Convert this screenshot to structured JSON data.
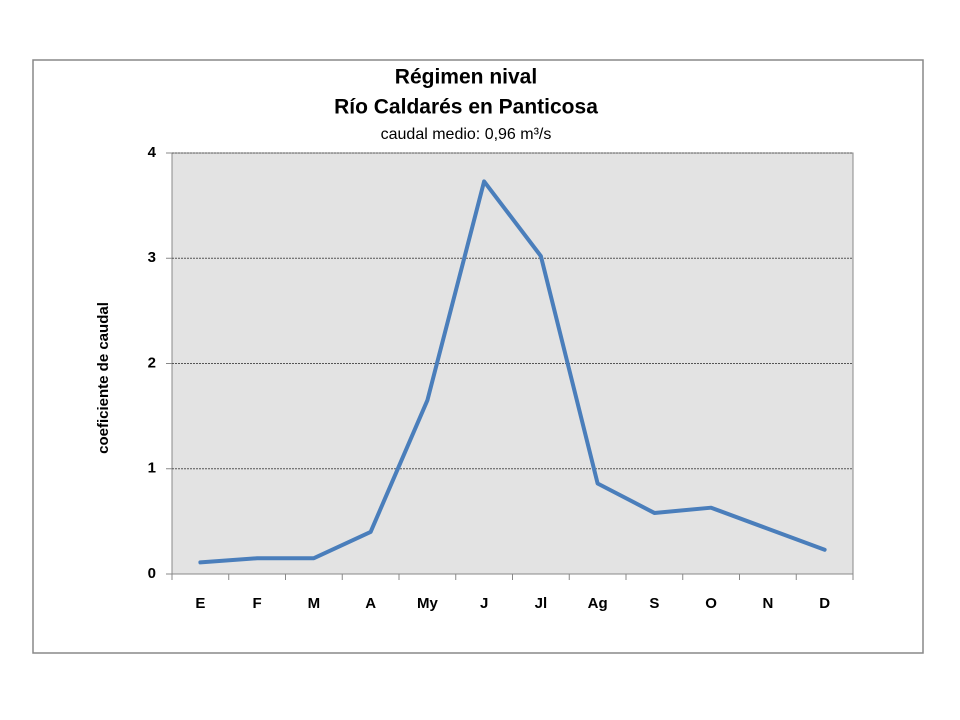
{
  "chart_data": {
    "type": "line",
    "title": "Régimen nival",
    "subtitle": "Río Caldarés en Panticosa",
    "annotation": "caudal medio: 0,96 m³/s",
    "y_label": "coeficiente de caudal",
    "categories": [
      "E",
      "F",
      "M",
      "A",
      "My",
      "J",
      "Jl",
      "Ag",
      "S",
      "O",
      "N",
      "D"
    ],
    "series": [
      {
        "name": "coeficiente de caudal",
        "color": "#4a7ebb",
        "values": [
          0.11,
          0.15,
          0.15,
          0.4,
          1.65,
          3.73,
          3.02,
          0.86,
          0.58,
          0.63,
          0.43,
          0.23
        ]
      }
    ],
    "ylim": [
      0,
      4
    ],
    "yticks": [
      0,
      1,
      2,
      3,
      4
    ],
    "grid": true,
    "legend": false
  }
}
